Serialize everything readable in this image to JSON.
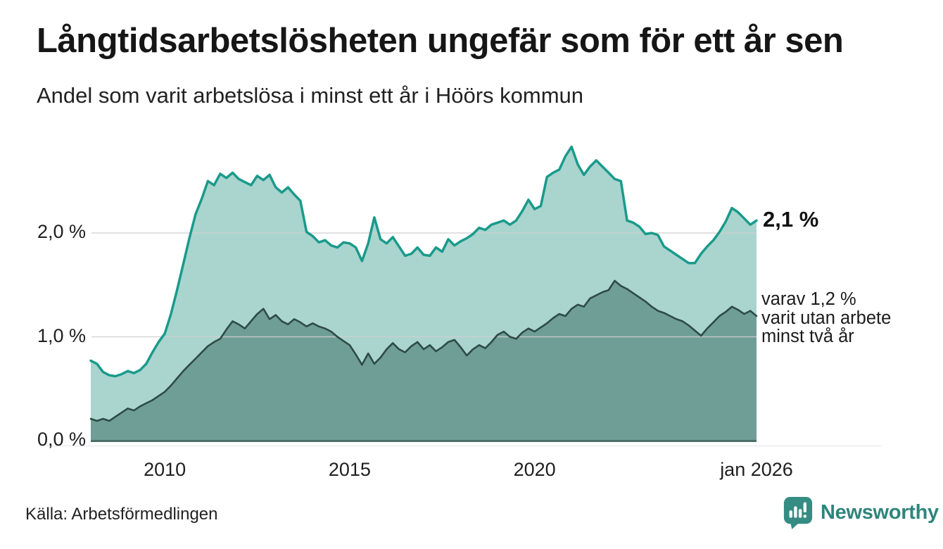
{
  "chart_data": {
    "type": "area",
    "title": "Långtidsarbetslösheten ungefär som för ett år sen",
    "subtitle": "Andel som varit arbetslösa i minst ett år i Höörs kommun",
    "x_domain": {
      "start_year": 2008,
      "end_year": 2026,
      "step_months": 2,
      "end_tick_label": "jan 2026"
    },
    "ylim": [
      0,
      2.9
    ],
    "grid": {
      "color": "#d0d0d0",
      "baseline_color": "#4b6e68",
      "divider_color": "#ececec",
      "grid_on": true
    },
    "y_ticks": [
      {
        "label": "0,0 %",
        "value": 0
      },
      {
        "label": "1,0 %",
        "value": 1
      },
      {
        "label": "2,0 %",
        "value": 2
      }
    ],
    "x_ticks": [
      {
        "label": "2010",
        "year": 2010
      },
      {
        "label": "2015",
        "year": 2015
      },
      {
        "label": "2020",
        "year": 2020
      },
      {
        "label": "jan 2026",
        "year": 2026
      }
    ],
    "legend_position": "right-annotations",
    "series": [
      {
        "label": "arbetslösa minst ett år",
        "end_label": "2,1 %",
        "end_value": 2.1,
        "line_color": "#1a9a8b",
        "fill_color": "#a9d5ce",
        "values": [
          0.77,
          0.74,
          0.66,
          0.63,
          0.62,
          0.64,
          0.67,
          0.65,
          0.68,
          0.74,
          0.85,
          0.95,
          1.03,
          1.22,
          1.45,
          1.7,
          1.95,
          2.18,
          2.33,
          2.5,
          2.46,
          2.57,
          2.53,
          2.58,
          2.52,
          2.49,
          2.46,
          2.55,
          2.51,
          2.56,
          2.44,
          2.39,
          2.44,
          2.37,
          2.31,
          2.01,
          1.97,
          1.91,
          1.93,
          1.88,
          1.86,
          1.91,
          1.9,
          1.86,
          1.73,
          1.9,
          2.15,
          1.94,
          1.9,
          1.96,
          1.87,
          1.78,
          1.8,
          1.86,
          1.79,
          1.78,
          1.86,
          1.82,
          1.94,
          1.88,
          1.92,
          1.95,
          1.99,
          2.05,
          2.03,
          2.08,
          2.1,
          2.12,
          2.08,
          2.12,
          2.21,
          2.32,
          2.23,
          2.26,
          2.54,
          2.58,
          2.61,
          2.74,
          2.83,
          2.66,
          2.56,
          2.64,
          2.7,
          2.64,
          2.58,
          2.52,
          2.5,
          2.12,
          2.1,
          2.06,
          1.99,
          2.0,
          1.98,
          1.87,
          1.83,
          1.79,
          1.75,
          1.71,
          1.71,
          1.8,
          1.87,
          1.93,
          2.01,
          2.11,
          2.24,
          2.2,
          2.14,
          2.08,
          2.12
        ]
      },
      {
        "label": "utan arbete minst två år",
        "end_label": "varav 1,2 %\nvarit utan arbete\nminst två år",
        "end_value": 1.2,
        "line_color": "#2e4b46",
        "fill_color": "#6f9e96",
        "values": [
          0.21,
          0.19,
          0.21,
          0.19,
          0.23,
          0.27,
          0.31,
          0.29,
          0.33,
          0.36,
          0.39,
          0.43,
          0.47,
          0.53,
          0.6,
          0.67,
          0.73,
          0.79,
          0.85,
          0.91,
          0.95,
          0.98,
          1.07,
          1.15,
          1.12,
          1.08,
          1.15,
          1.22,
          1.27,
          1.17,
          1.21,
          1.15,
          1.12,
          1.17,
          1.14,
          1.1,
          1.13,
          1.1,
          1.08,
          1.05,
          1.0,
          0.96,
          0.92,
          0.83,
          0.73,
          0.84,
          0.74,
          0.8,
          0.88,
          0.94,
          0.88,
          0.85,
          0.91,
          0.95,
          0.88,
          0.92,
          0.86,
          0.9,
          0.95,
          0.97,
          0.9,
          0.82,
          0.88,
          0.92,
          0.89,
          0.95,
          1.02,
          1.05,
          1.0,
          0.98,
          1.04,
          1.08,
          1.05,
          1.09,
          1.13,
          1.18,
          1.22,
          1.2,
          1.27,
          1.31,
          1.29,
          1.37,
          1.4,
          1.43,
          1.45,
          1.54,
          1.49,
          1.46,
          1.42,
          1.38,
          1.34,
          1.29,
          1.25,
          1.23,
          1.2,
          1.17,
          1.15,
          1.11,
          1.06,
          1.01,
          1.08,
          1.14,
          1.2,
          1.24,
          1.29,
          1.26,
          1.22,
          1.25,
          1.2
        ]
      }
    ]
  },
  "source": {
    "label": "Källa: Arbetsförmedlingen"
  },
  "branding": {
    "name": "Newsworthy",
    "color": "#2f857b",
    "icon": "bar-chart-speech-bubble-icon",
    "icon_color": "#358c82"
  }
}
